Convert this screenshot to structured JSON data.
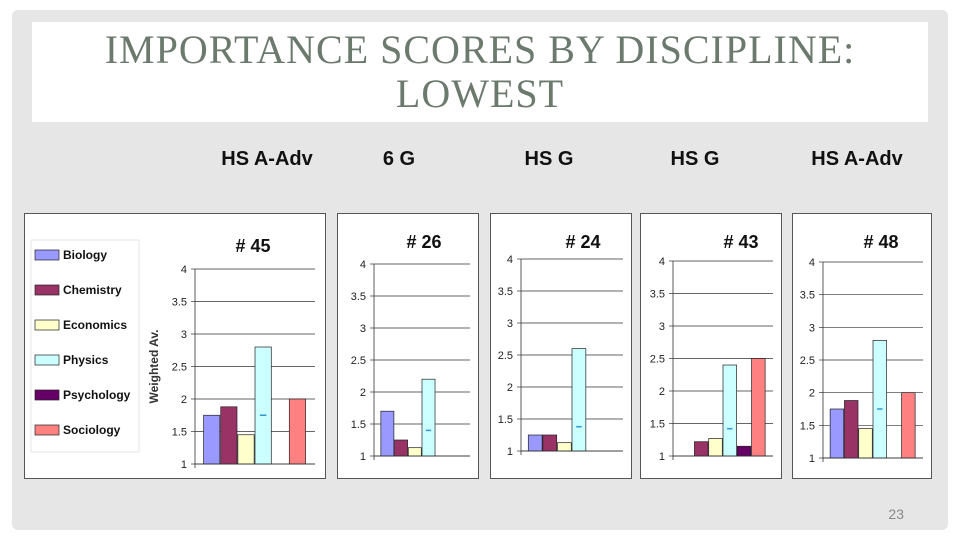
{
  "slide": {
    "title": "IMPORTANCE SCORES BY DISCIPLINE: LOWEST",
    "page_number": "23",
    "column_labels": [
      "HS A-Adv",
      "6  G",
      "HS G",
      "HS G",
      "HS A-Adv"
    ]
  },
  "legend": {
    "entries": [
      "Biology",
      "Chemistry",
      "Economics",
      "Physics",
      "Psychology",
      "Sociology"
    ]
  },
  "colors": {
    "Biology": "#9999ff",
    "Chemistry": "#993366",
    "Economics": "#ffffcc",
    "Physics": "#ccffff",
    "Psychology": "#660066",
    "Sociology": "#ff8080",
    "error_mark": "#3399cc"
  },
  "chart_data": [
    {
      "type": "bar",
      "title": "# 45",
      "ylabel": "Weighted Av.",
      "ylim": [
        1,
        4
      ],
      "yticks": [
        "1",
        "1.5",
        "2",
        "2.5",
        "3",
        "3.5",
        "4"
      ],
      "series": [
        {
          "name": "Biology",
          "value": 1.75
        },
        {
          "name": "Chemistry",
          "value": 1.88
        },
        {
          "name": "Economics",
          "value": 1.45
        },
        {
          "name": "Physics",
          "value": 2.8,
          "mark": 1.75
        },
        {
          "name": "Psychology",
          "value": null
        },
        {
          "name": "Sociology",
          "value": 2.0
        }
      ]
    },
    {
      "type": "bar",
      "title": "# 26",
      "ylim": [
        1,
        4
      ],
      "yticks": [
        "1",
        "1.5",
        "2",
        "2.5",
        "3",
        "3.5",
        "4"
      ],
      "series": [
        {
          "name": "Biology",
          "value": 1.7
        },
        {
          "name": "Chemistry",
          "value": 1.25
        },
        {
          "name": "Economics",
          "value": 1.13
        },
        {
          "name": "Physics",
          "value": 2.2,
          "mark": 1.4
        },
        {
          "name": "Psychology",
          "value": null
        },
        {
          "name": "Sociology",
          "value": null
        }
      ]
    },
    {
      "type": "bar",
      "title": "# 24",
      "ylim": [
        1,
        4
      ],
      "yticks": [
        "1",
        "1.5",
        "2",
        "2.5",
        "3",
        "3.5",
        "4"
      ],
      "series": [
        {
          "name": "Biology",
          "value": 1.25
        },
        {
          "name": "Chemistry",
          "value": 1.25
        },
        {
          "name": "Economics",
          "value": 1.13
        },
        {
          "name": "Physics",
          "value": 2.6,
          "mark": 1.38
        },
        {
          "name": "Psychology",
          "value": null
        },
        {
          "name": "Sociology",
          "value": null
        }
      ]
    },
    {
      "type": "bar",
      "title": "# 43",
      "ylim": [
        1,
        4
      ],
      "yticks": [
        "1",
        "1.5",
        "2",
        "2.5",
        "3",
        "3.5",
        "4"
      ],
      "series": [
        {
          "name": "Biology",
          "value": null
        },
        {
          "name": "Chemistry",
          "value": 1.22
        },
        {
          "name": "Economics",
          "value": 1.27
        },
        {
          "name": "Physics",
          "value": 2.4,
          "mark": 1.42
        },
        {
          "name": "Psychology",
          "value": 1.15
        },
        {
          "name": "Sociology",
          "value": 2.5
        }
      ]
    },
    {
      "type": "bar",
      "title": "# 48",
      "ylim": [
        1,
        4
      ],
      "yticks": [
        "1",
        "1.5",
        "2",
        "2.5",
        "3",
        "3.5",
        "4"
      ],
      "series": [
        {
          "name": "Biology",
          "value": 1.75
        },
        {
          "name": "Chemistry",
          "value": 1.88
        },
        {
          "name": "Economics",
          "value": 1.45
        },
        {
          "name": "Physics",
          "value": 2.8,
          "mark": 1.75
        },
        {
          "name": "Psychology",
          "value": null
        },
        {
          "name": "Sociology",
          "value": 2.0
        }
      ]
    }
  ]
}
